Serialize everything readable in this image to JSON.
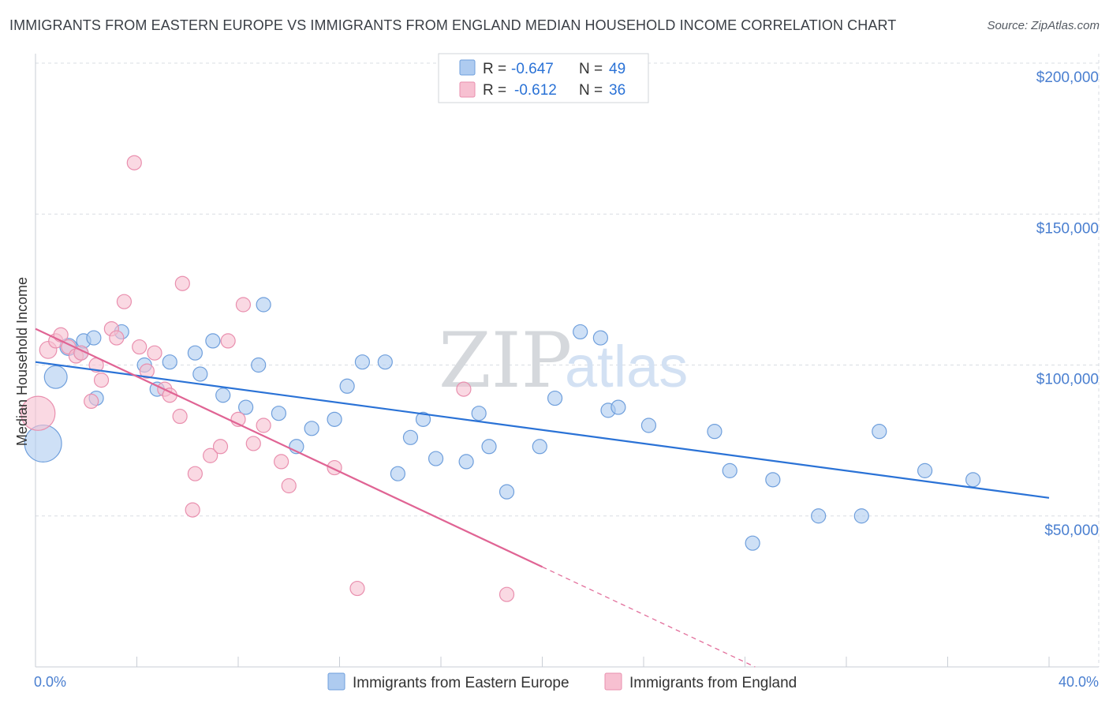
{
  "title": "IMMIGRANTS FROM EASTERN EUROPE VS IMMIGRANTS FROM ENGLAND MEDIAN HOUSEHOLD INCOME CORRELATION CHART",
  "source": "Source: ZipAtlas.com",
  "colors": {
    "blue_fill": "#aecbf0",
    "blue_stroke": "#6f9fdc",
    "blue_line": "#2a72d6",
    "pink_fill": "#f7c0d1",
    "pink_stroke": "#e98fae",
    "pink_line": "#e06494",
    "tick_text": "#4a7fd0",
    "grid": "#d9dde3"
  },
  "stats": [
    {
      "series": "Immigrants from Eastern Europe",
      "r_label": "R =",
      "r_value": "-0.647",
      "n_label": "N =",
      "n_value": "49"
    },
    {
      "series": "Immigrants from England",
      "r_label": "R =",
      "r_value": "-0.612",
      "n_label": "N =",
      "n_value": "36"
    }
  ],
  "watermark": {
    "zip": "ZIP",
    "atlas": "atlas"
  },
  "chart_data": {
    "type": "scatter",
    "title": "IMMIGRANTS FROM EASTERN EUROPE VS IMMIGRANTS FROM ENGLAND MEDIAN HOUSEHOLD INCOME CORRELATION CHART",
    "xlabel": "",
    "ylabel": "Median Household Income",
    "xlim": [
      0,
      40
    ],
    "ylim": [
      0,
      210000
    ],
    "x_tick_labels": [
      {
        "value": 0,
        "label": "0.0%"
      },
      {
        "value": 40,
        "label": "40.0%"
      }
    ],
    "y_ticks": [
      {
        "value": 50000,
        "label": "$50,000"
      },
      {
        "value": 100000,
        "label": "$100,000"
      },
      {
        "value": 150000,
        "label": "$150,000"
      },
      {
        "value": 200000,
        "label": "$200,000"
      }
    ],
    "legend_position": "bottom-center",
    "series": [
      {
        "name": "Immigrants from Eastern Europe",
        "color": "blue",
        "trend": {
          "x0": 0,
          "y0": 101000,
          "x1": 40,
          "y1": 56000,
          "solid_until": 40
        },
        "points": [
          {
            "x": 0.3,
            "y": 74000,
            "s": 2.6
          },
          {
            "x": 0.8,
            "y": 96000,
            "s": 1.6
          },
          {
            "x": 1.3,
            "y": 106000,
            "s": 1.2
          },
          {
            "x": 1.8,
            "y": 104000,
            "s": 1.0
          },
          {
            "x": 1.9,
            "y": 108000,
            "s": 1.0
          },
          {
            "x": 2.3,
            "y": 109000,
            "s": 1.0
          },
          {
            "x": 2.4,
            "y": 89000,
            "s": 1.0
          },
          {
            "x": 3.4,
            "y": 111000,
            "s": 1.0
          },
          {
            "x": 4.3,
            "y": 100000,
            "s": 1.0
          },
          {
            "x": 4.8,
            "y": 92000,
            "s": 1.0
          },
          {
            "x": 5.3,
            "y": 101000,
            "s": 1.0
          },
          {
            "x": 6.3,
            "y": 104000,
            "s": 1.0
          },
          {
            "x": 6.5,
            "y": 97000,
            "s": 1.0
          },
          {
            "x": 7.0,
            "y": 108000,
            "s": 1.0
          },
          {
            "x": 7.4,
            "y": 90000,
            "s": 1.0
          },
          {
            "x": 8.3,
            "y": 86000,
            "s": 1.0
          },
          {
            "x": 8.8,
            "y": 100000,
            "s": 1.0
          },
          {
            "x": 9.0,
            "y": 120000,
            "s": 1.0
          },
          {
            "x": 9.6,
            "y": 84000,
            "s": 1.0
          },
          {
            "x": 10.3,
            "y": 73000,
            "s": 1.0
          },
          {
            "x": 10.9,
            "y": 79000,
            "s": 1.0
          },
          {
            "x": 11.8,
            "y": 82000,
            "s": 1.0
          },
          {
            "x": 12.3,
            "y": 93000,
            "s": 1.0
          },
          {
            "x": 12.9,
            "y": 101000,
            "s": 1.0
          },
          {
            "x": 13.8,
            "y": 101000,
            "s": 1.0
          },
          {
            "x": 14.3,
            "y": 64000,
            "s": 1.0
          },
          {
            "x": 14.8,
            "y": 76000,
            "s": 1.0
          },
          {
            "x": 15.3,
            "y": 82000,
            "s": 1.0
          },
          {
            "x": 15.8,
            "y": 69000,
            "s": 1.0
          },
          {
            "x": 17.0,
            "y": 68000,
            "s": 1.0
          },
          {
            "x": 17.5,
            "y": 84000,
            "s": 1.0
          },
          {
            "x": 17.9,
            "y": 73000,
            "s": 1.0
          },
          {
            "x": 18.6,
            "y": 58000,
            "s": 1.0
          },
          {
            "x": 19.9,
            "y": 73000,
            "s": 1.0
          },
          {
            "x": 20.5,
            "y": 89000,
            "s": 1.0
          },
          {
            "x": 21.5,
            "y": 111000,
            "s": 1.0
          },
          {
            "x": 22.3,
            "y": 109000,
            "s": 1.0
          },
          {
            "x": 22.6,
            "y": 85000,
            "s": 1.0
          },
          {
            "x": 23.0,
            "y": 86000,
            "s": 1.0
          },
          {
            "x": 24.2,
            "y": 80000,
            "s": 1.0
          },
          {
            "x": 26.8,
            "y": 78000,
            "s": 1.0
          },
          {
            "x": 27.4,
            "y": 65000,
            "s": 1.0
          },
          {
            "x": 28.3,
            "y": 41000,
            "s": 1.0
          },
          {
            "x": 29.1,
            "y": 62000,
            "s": 1.0
          },
          {
            "x": 30.9,
            "y": 50000,
            "s": 1.0
          },
          {
            "x": 32.6,
            "y": 50000,
            "s": 1.0
          },
          {
            "x": 33.3,
            "y": 78000,
            "s": 1.0
          },
          {
            "x": 35.1,
            "y": 65000,
            "s": 1.0
          },
          {
            "x": 37.0,
            "y": 62000,
            "s": 1.0
          }
        ]
      },
      {
        "name": "Immigrants from England",
        "color": "pink",
        "trend": {
          "x0": 0,
          "y0": 112000,
          "x1": 28.4,
          "y1": 0,
          "solid_until": 20.0
        },
        "points": [
          {
            "x": 0.1,
            "y": 84000,
            "s": 2.4
          },
          {
            "x": 0.5,
            "y": 105000,
            "s": 1.2
          },
          {
            "x": 0.8,
            "y": 108000,
            "s": 1.0
          },
          {
            "x": 1.0,
            "y": 110000,
            "s": 1.0
          },
          {
            "x": 1.3,
            "y": 106000,
            "s": 1.0
          },
          {
            "x": 1.6,
            "y": 103000,
            "s": 1.0
          },
          {
            "x": 1.8,
            "y": 104000,
            "s": 1.0
          },
          {
            "x": 2.2,
            "y": 88000,
            "s": 1.0
          },
          {
            "x": 2.4,
            "y": 100000,
            "s": 1.0
          },
          {
            "x": 2.6,
            "y": 95000,
            "s": 1.0
          },
          {
            "x": 3.0,
            "y": 112000,
            "s": 1.0
          },
          {
            "x": 3.2,
            "y": 109000,
            "s": 1.0
          },
          {
            "x": 3.5,
            "y": 121000,
            "s": 1.0
          },
          {
            "x": 3.9,
            "y": 167000,
            "s": 1.0
          },
          {
            "x": 4.1,
            "y": 106000,
            "s": 1.0
          },
          {
            "x": 4.4,
            "y": 98000,
            "s": 1.0
          },
          {
            "x": 4.7,
            "y": 104000,
            "s": 1.0
          },
          {
            "x": 5.1,
            "y": 92000,
            "s": 1.0
          },
          {
            "x": 5.3,
            "y": 90000,
            "s": 1.0
          },
          {
            "x": 5.7,
            "y": 83000,
            "s": 1.0
          },
          {
            "x": 5.8,
            "y": 127000,
            "s": 1.0
          },
          {
            "x": 6.2,
            "y": 52000,
            "s": 1.0
          },
          {
            "x": 6.3,
            "y": 64000,
            "s": 1.0
          },
          {
            "x": 6.9,
            "y": 70000,
            "s": 1.0
          },
          {
            "x": 7.3,
            "y": 73000,
            "s": 1.0
          },
          {
            "x": 7.6,
            "y": 108000,
            "s": 1.0
          },
          {
            "x": 8.0,
            "y": 82000,
            "s": 1.0
          },
          {
            "x": 8.2,
            "y": 120000,
            "s": 1.0
          },
          {
            "x": 8.6,
            "y": 74000,
            "s": 1.0
          },
          {
            "x": 9.0,
            "y": 80000,
            "s": 1.0
          },
          {
            "x": 9.7,
            "y": 68000,
            "s": 1.0
          },
          {
            "x": 10.0,
            "y": 60000,
            "s": 1.0
          },
          {
            "x": 11.8,
            "y": 66000,
            "s": 1.0
          },
          {
            "x": 12.7,
            "y": 26000,
            "s": 1.0
          },
          {
            "x": 16.9,
            "y": 92000,
            "s": 1.0
          },
          {
            "x": 18.6,
            "y": 24000,
            "s": 1.0
          }
        ]
      }
    ]
  }
}
